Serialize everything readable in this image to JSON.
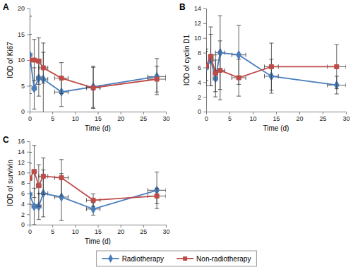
{
  "chart_data": [
    {
      "type": "line",
      "title": "A",
      "x_label": "Time (d)",
      "y_label": "IOD of Ki67",
      "x": [
        0,
        1,
        2,
        3,
        7,
        14,
        28
      ],
      "xlim": [
        0,
        30
      ],
      "xticks": [
        0,
        5,
        10,
        15,
        20,
        25,
        30
      ],
      "ylim": [
        0,
        20
      ],
      "yticks": [
        0,
        5,
        10,
        15,
        20
      ],
      "legend": "bottom",
      "series": [
        {
          "name": "Radiotherapy",
          "color": "#4a7ebb",
          "marker": "diamond",
          "values": [
            11,
            4.5,
            6.5,
            6.3,
            3.8,
            4.8,
            6.8
          ],
          "errors": [
            7.5,
            4,
            3.5,
            7,
            2.8,
            4,
            3.5
          ],
          "x_errors": [
            0.5,
            0.5,
            0.5,
            1,
            1.5,
            1.5,
            2
          ]
        },
        {
          "name": "Non-radiotherapy",
          "color": "#be4b48",
          "marker": "square",
          "values": [
            10,
            10,
            9.8,
            8.5,
            6.5,
            4.6,
            6.3
          ],
          "errors": [
            5,
            4,
            4.5,
            3,
            3,
            4,
            2.5
          ],
          "x_errors": [
            0.5,
            0.5,
            0.5,
            1,
            1.5,
            1.5,
            2
          ]
        }
      ]
    },
    {
      "type": "line",
      "title": "B",
      "x_label": "Time (d)",
      "y_label": "IOD of cyclin D1",
      "x": [
        0,
        1,
        2,
        3,
        7,
        14,
        28
      ],
      "xlim": [
        0,
        30
      ],
      "xticks": [
        0,
        5,
        10,
        15,
        20,
        25,
        30
      ],
      "ylim": [
        0,
        14
      ],
      "yticks": [
        0,
        2,
        4,
        6,
        8,
        10,
        12,
        14
      ],
      "series": [
        {
          "color": "#4a7ebb",
          "marker": "diamond",
          "values": [
            6,
            7,
            4.5,
            8,
            7.7,
            4.8,
            3.6
          ],
          "errors": [
            2.5,
            3.5,
            2.5,
            5,
            4,
            2.3,
            1.2
          ],
          "x_errors": [
            0.5,
            0.5,
            0.5,
            1,
            1.5,
            1.5,
            2
          ]
        },
        {
          "color": "#be4b48",
          "marker": "square",
          "values": [
            6.2,
            7.5,
            5.2,
            5.6,
            4.6,
            6.1,
            6.1
          ],
          "errors": [
            2,
            4,
            2.5,
            4,
            2.5,
            3.2,
            3
          ],
          "x_errors": [
            0.5,
            0.5,
            0.5,
            1,
            1.5,
            1.5,
            2
          ]
        }
      ]
    },
    {
      "type": "line",
      "title": "C",
      "x_label": "Time (d)",
      "y_label": "IOD of survivin",
      "x": [
        0,
        1,
        2,
        3,
        7,
        14,
        28
      ],
      "xlim": [
        0,
        30
      ],
      "xticks": [
        0,
        5,
        10,
        15,
        20,
        25,
        30
      ],
      "ylim": [
        0,
        16
      ],
      "yticks": [
        0,
        2,
        4,
        6,
        8,
        10,
        12,
        14,
        16
      ],
      "series": [
        {
          "color": "#4a7ebb",
          "marker": "diamond",
          "values": [
            5.8,
            3.5,
            3.5,
            6,
            5.3,
            3,
            6.6
          ],
          "errors": [
            6,
            3.5,
            2.5,
            4.5,
            4.5,
            1.2,
            3.5
          ],
          "x_errors": [
            0.5,
            0.5,
            0.5,
            1,
            1.5,
            1.5,
            2
          ]
        },
        {
          "color": "#be4b48",
          "marker": "square",
          "values": [
            8.9,
            10.2,
            7.5,
            9.3,
            9,
            4.7,
            5.5
          ],
          "errors": [
            5,
            5,
            4,
            3.5,
            3.5,
            1.2,
            1.5
          ],
          "x_errors": [
            0.5,
            0.5,
            0.5,
            1,
            1.5,
            1.5,
            2
          ]
        }
      ]
    }
  ]
}
